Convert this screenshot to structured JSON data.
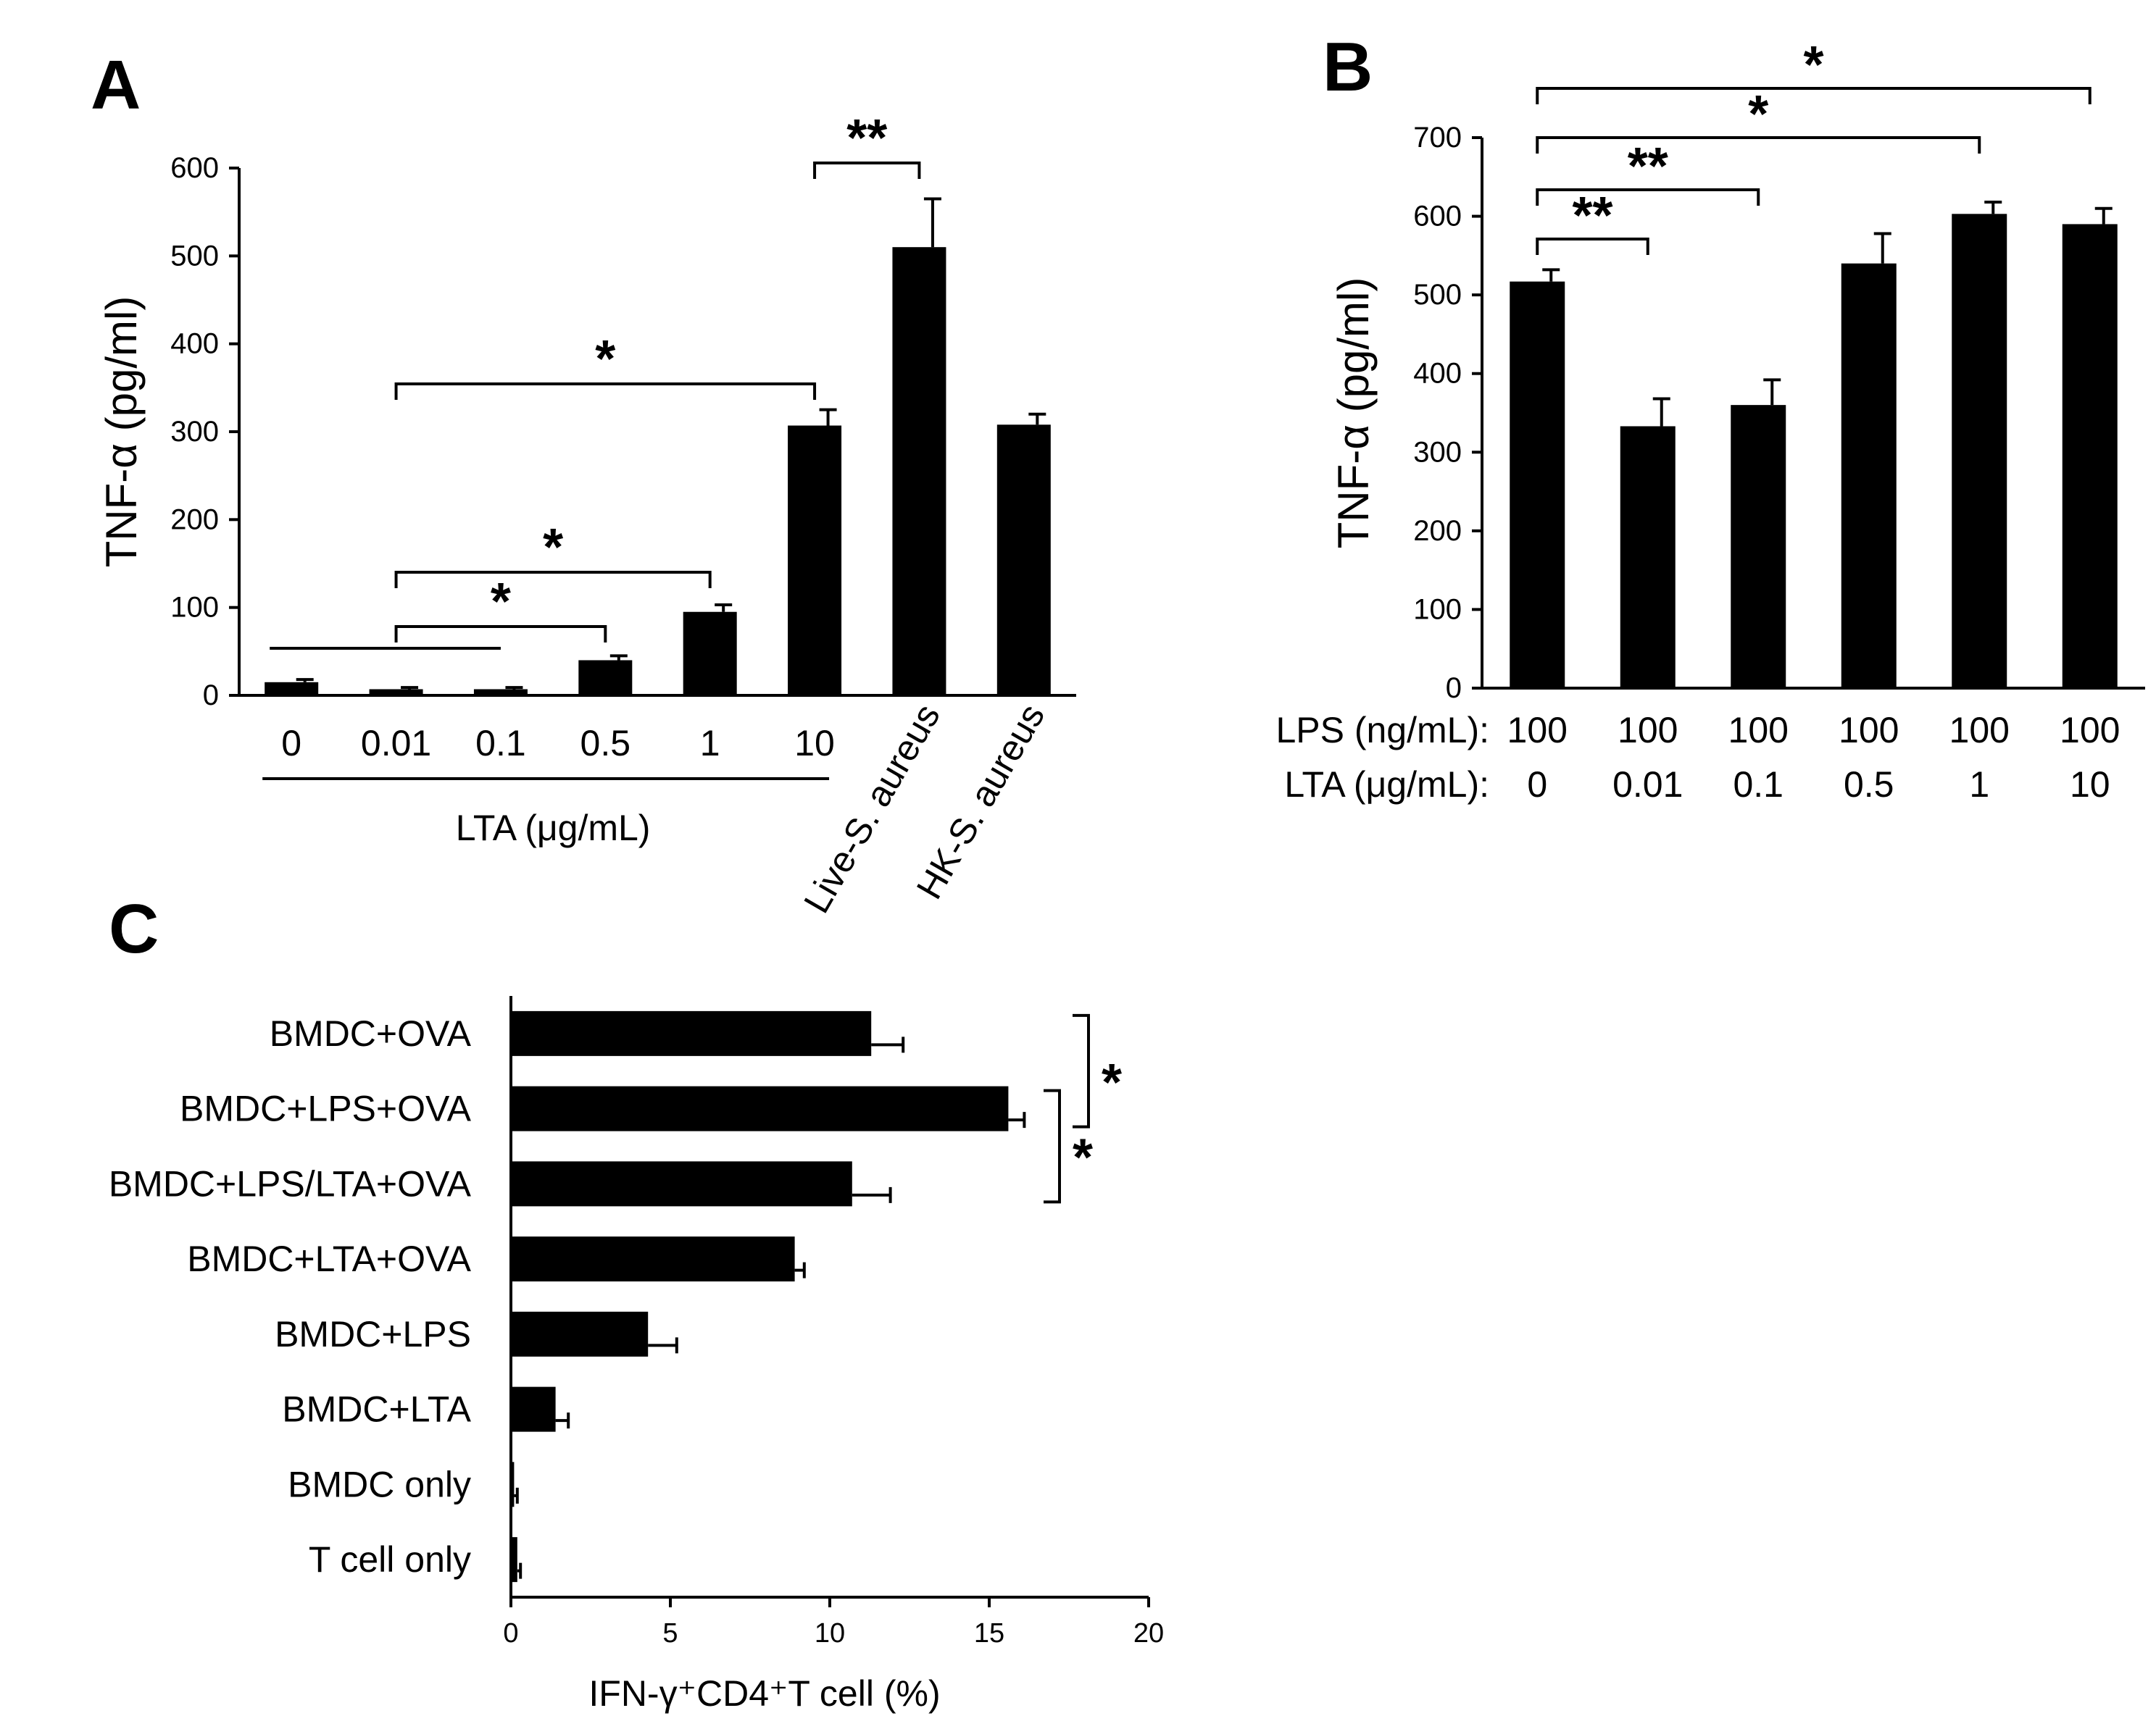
{
  "chart_data": [
    {
      "panel": "A",
      "type": "bar",
      "ylabel": "TNF-α (pg/ml)",
      "ylim": [
        0,
        600
      ],
      "yticks": [
        "0",
        "100",
        "200",
        "300",
        "400",
        "500",
        "600"
      ],
      "categories": [
        "0",
        "0.01",
        "0.1",
        "0.5",
        "1",
        "10",
        "Live-S. aureus",
        "HK-S. aureus"
      ],
      "values": [
        15,
        7,
        7,
        40,
        95,
        307,
        510,
        308
      ],
      "errors": [
        3,
        2,
        2,
        5,
        8,
        18,
        55,
        12
      ],
      "group_label": "LTA (μg/mL)",
      "significance": [
        {
          "from": "0.01",
          "to": "0.5",
          "label": "*"
        },
        {
          "from": "0.01",
          "to": "1",
          "label": "*"
        },
        {
          "from": "0.01",
          "to": "10",
          "label": "*"
        },
        {
          "from": "10",
          "to": "Live-S. aureus",
          "label": "**"
        }
      ]
    },
    {
      "panel": "B",
      "type": "bar",
      "ylabel": "TNF-α (pg/ml)",
      "ylim": [
        0,
        700
      ],
      "yticks": [
        "0",
        "100",
        "200",
        "300",
        "400",
        "500",
        "600",
        "700"
      ],
      "row_labels": [
        "LPS (ng/mL):",
        "LTA (μg/mL):"
      ],
      "lps": [
        "100",
        "100",
        "100",
        "100",
        "100",
        "100"
      ],
      "lta": [
        "0",
        "0.01",
        "0.1",
        "0.5",
        "1",
        "10"
      ],
      "values": [
        517,
        333,
        360,
        540,
        603,
        590
      ],
      "errors": [
        15,
        35,
        32,
        38,
        15,
        20
      ],
      "significance": [
        {
          "from": 0,
          "to": 1,
          "label": "**"
        },
        {
          "from": 0,
          "to": 2,
          "label": "**"
        },
        {
          "from": 0,
          "to": 4,
          "label": "*"
        },
        {
          "from": 0,
          "to": 5,
          "label": "*"
        }
      ]
    },
    {
      "panel": "C",
      "type": "bar",
      "orientation": "horizontal",
      "xlabel": "IFN-γ⁺CD4⁺T cell (%)",
      "xlim": [
        0,
        20
      ],
      "xticks": [
        "0",
        "5",
        "10",
        "15",
        "20"
      ],
      "categories": [
        "BMDC+OVA",
        "BMDC+LPS+OVA",
        "BMDC+LPS/LTA+OVA",
        "BMDC+LTA+OVA",
        "BMDC+LPS",
        "BMDC+LTA",
        "BMDC only",
        "T cell only"
      ],
      "values": [
        11.3,
        15.6,
        10.7,
        8.9,
        4.3,
        1.4,
        0.1,
        0.2
      ],
      "errors": [
        1.0,
        0.5,
        1.2,
        0.3,
        0.9,
        0.4,
        0.1,
        0.1
      ],
      "significance": [
        {
          "from": "BMDC+OVA",
          "to": "BMDC+LPS+OVA",
          "label": "*"
        },
        {
          "from": "BMDC+LPS+OVA",
          "to": "BMDC+LPS/LTA+OVA",
          "label": "*"
        }
      ]
    }
  ],
  "panel_labels": [
    "A",
    "B",
    "C"
  ]
}
